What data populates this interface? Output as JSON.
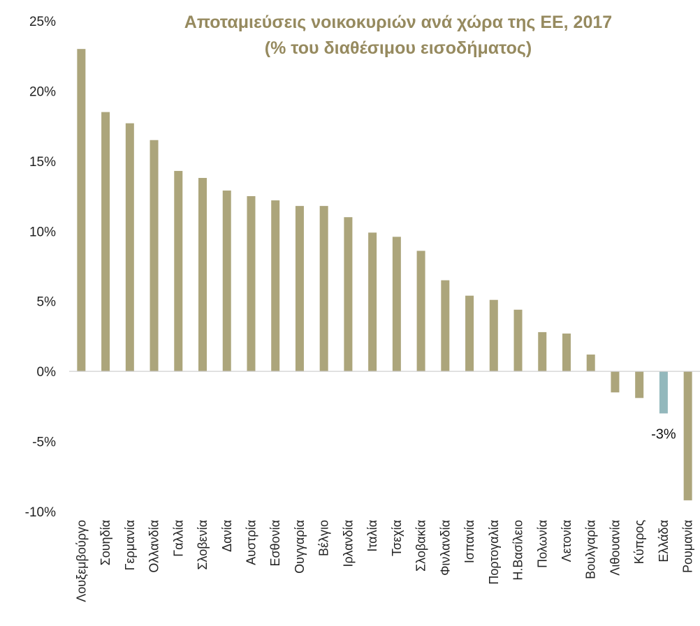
{
  "chart_data": {
    "type": "bar",
    "title": "Αποταμιεύσεις νοικοκυριών ανά χώρα της ΕΕ, 2017",
    "subtitle": "(% του διαθέσιμου εισοδήματος)",
    "xlabel": "",
    "ylabel": "",
    "ylim": [
      -10,
      25
    ],
    "yticks": [
      25,
      20,
      15,
      10,
      5,
      0,
      -5,
      -10
    ],
    "ytick_labels": [
      "25%",
      "20%",
      "15%",
      "10%",
      "5%",
      "0%",
      "-5%",
      "-10%"
    ],
    "grid": false,
    "categories": [
      "Λουξεμβούργο",
      "Σουηδία",
      "Γερμανία",
      "Ολλανδία",
      "Γαλλία",
      "Σλοβενία",
      "Δανία",
      "Αυστρία",
      "Εσθονία",
      "Ουγγαρία",
      "Βέλγιο",
      "Ιρλανδία",
      "Ιταλία",
      "Τσεχία",
      "Σλοβακία",
      "Φινλανδία",
      "Ισπανία",
      "Πορτογαλία",
      "Η.Βασίλειο",
      "Πολωνία",
      "Λετονία",
      "Βουλγαρία",
      "Λιθουανία",
      "Κύπρος",
      "Ελλάδα",
      "Ρουμανία"
    ],
    "values": [
      23.0,
      18.5,
      17.7,
      16.5,
      14.3,
      13.8,
      12.9,
      12.5,
      12.2,
      11.8,
      11.8,
      11.0,
      9.9,
      9.6,
      8.6,
      6.5,
      5.4,
      5.1,
      4.4,
      2.8,
      2.7,
      1.2,
      -1.5,
      -1.9,
      -3.0,
      -9.2
    ],
    "bar_color": "#aca57b",
    "highlight_color": "#93b8bc",
    "highlight_index": 24,
    "data_labels": [
      {
        "index": 24,
        "text": "-3%"
      }
    ]
  }
}
